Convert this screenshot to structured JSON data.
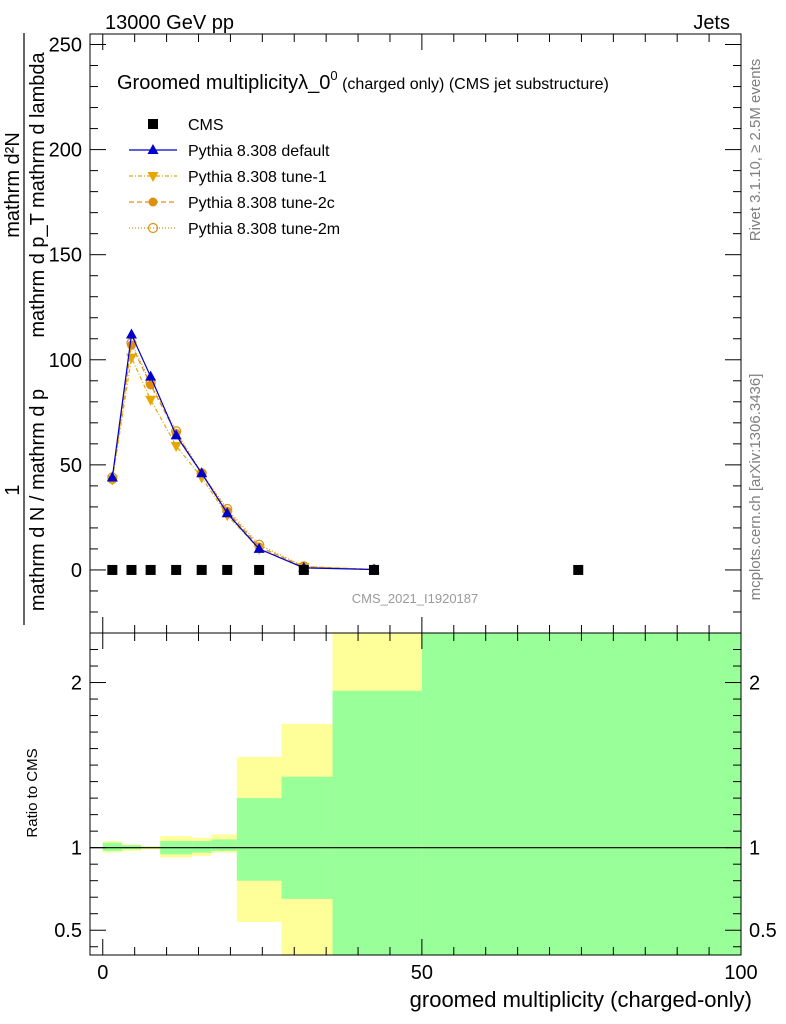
{
  "header": {
    "energy_label": "13000 GeV pp",
    "process_label": "Jets"
  },
  "side_text": {
    "rivet": "Rivet 3.1.10, ≥ 2.5M events",
    "mcplots": "mcplots.cern.ch [arXiv:1306.3436]"
  },
  "watermark": "CMS_2021_I1920187",
  "chart_data": [
    {
      "type": "line",
      "title_main": "Groomed multiplicityλ_0",
      "title_sup": "0",
      "title_sub": " (charged only) (CMS jet substructure)",
      "ylabel_prefix": "1",
      "ylabel_num": "mathrm d²N",
      "ylabel_den": "mathrm d N / mathrm d p",
      "ylabel_rest": "mathrm d p_T mathrm d lambda",
      "xlabel": "groomed multiplicity (charged-only)",
      "xlim": [
        -2,
        100
      ],
      "ylim": [
        -30,
        255
      ],
      "yticks": [
        0,
        50,
        100,
        150,
        200,
        250
      ],
      "yticks_labels": [
        "0",
        "50",
        "100",
        "150",
        "200",
        "250"
      ],
      "legend_position": "top-left",
      "legend": [
        "CMS",
        "Pythia 8.308 default",
        "Pythia 8.308 tune-1",
        "Pythia 8.308 tune-2c",
        "Pythia 8.308 tune-2m"
      ],
      "data_x": [
        1.5,
        4.5,
        7.5,
        11.5,
        15.5,
        19.5,
        24.5,
        31.5,
        42.5,
        74.5
      ],
      "data_y": [
        0,
        0,
        0,
        0,
        0,
        0,
        0,
        0,
        0,
        0
      ],
      "series": [
        {
          "name": "Pythia 8.308 default",
          "color": "#0000cc",
          "dash": "",
          "marker": "triangle-up",
          "x": [
            1.5,
            4.5,
            7.5,
            11.5,
            15.5,
            19.5,
            24.5,
            31.5,
            42.5
          ],
          "y": [
            44,
            112,
            92,
            64,
            46,
            27,
            10,
            1,
            0.2
          ]
        },
        {
          "name": "Pythia 8.308 tune-1",
          "color": "#e6a800",
          "dash": "4,2,1,2",
          "marker": "triangle-down",
          "x": [
            1.5,
            4.5,
            7.5,
            11.5,
            15.5,
            19.5,
            24.5,
            31.5,
            42.5
          ],
          "y": [
            43,
            101,
            81,
            59,
            44,
            26,
            10,
            1.4,
            0.2
          ]
        },
        {
          "name": "Pythia 8.308 tune-2c",
          "color": "#e09010",
          "dash": "5,3",
          "marker": "circle-filled",
          "x": [
            1.5,
            4.5,
            7.5,
            11.5,
            15.5,
            19.5,
            24.5,
            31.5,
            42.5
          ],
          "y": [
            43,
            107,
            88,
            65,
            46,
            28,
            11,
            1.6,
            0.2
          ]
        },
        {
          "name": "Pythia 8.308 tune-2m",
          "color": "#e09010",
          "dash": "1,2",
          "marker": "circle-open",
          "x": [
            1.5,
            4.5,
            7.5,
            11.5,
            15.5,
            19.5,
            24.5,
            31.5,
            42.5
          ],
          "y": [
            44,
            108,
            89,
            66,
            46,
            29,
            12,
            1.7,
            0.2
          ]
        }
      ]
    },
    {
      "type": "area",
      "ylabel": "Ratio to CMS",
      "xlim": [
        -2,
        100
      ],
      "ylim": [
        0.35,
        2.3
      ],
      "yticks": [
        0.5,
        1,
        2
      ],
      "yticks_labels": [
        "0.5",
        "1",
        "2"
      ],
      "xticks": [
        0,
        50,
        100
      ],
      "xticks_labels": [
        "0",
        "50",
        "100"
      ],
      "reference_line": 1,
      "band_edges": [
        0,
        3,
        6,
        9,
        14,
        17,
        21,
        28,
        36,
        50,
        100
      ],
      "band_yellow": {
        "color": "#ffff99",
        "lo": [
          0.97,
          0.98,
          0.99,
          0.94,
          0.95,
          0.97,
          0.55,
          0.35,
          0.35,
          0.35
        ],
        "hi": [
          1.04,
          1.02,
          1.01,
          1.07,
          1.06,
          1.08,
          1.55,
          1.75,
          2.3,
          2.3
        ]
      },
      "band_green": {
        "color": "#99ff99",
        "lo": [
          0.98,
          0.99,
          0.995,
          0.96,
          0.97,
          0.98,
          0.8,
          0.69,
          0.35,
          0.35
        ],
        "hi": [
          1.03,
          1.015,
          1.005,
          1.04,
          1.04,
          1.05,
          1.3,
          1.43,
          1.95,
          2.3
        ]
      }
    }
  ]
}
